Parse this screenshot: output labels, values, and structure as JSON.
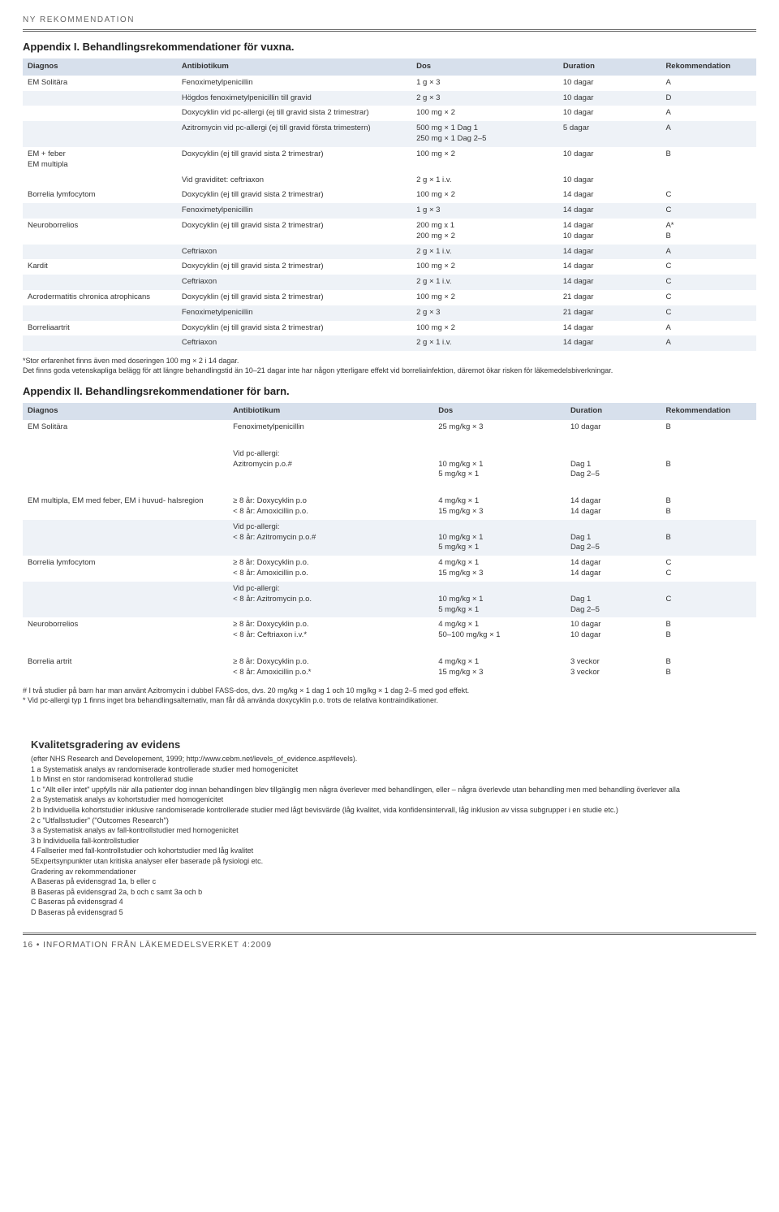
{
  "category": "NY REKOMMENDATION",
  "appendix1": {
    "title": "Appendix I. Behandlingsrekommendationer för vuxna.",
    "headers": [
      "Diagnos",
      "Antibiotikum",
      "Dos",
      "Duration",
      "Rekommendation"
    ],
    "rows": [
      {
        "alt": false,
        "cells": [
          "EM Solitära",
          "Fenoximetylpenicillin",
          "1 g × 3",
          "10 dagar",
          "A"
        ]
      },
      {
        "alt": true,
        "cells": [
          "",
          "Högdos fenoximetylpenicillin till gravid",
          "2 g × 3",
          "10 dagar",
          "D"
        ]
      },
      {
        "alt": false,
        "cells": [
          "",
          "Doxycyklin vid pc-allergi (ej till gravid sista 2 trimestrar)",
          "100 mg × 2",
          "10 dagar",
          "A"
        ]
      },
      {
        "alt": true,
        "cells": [
          "",
          "Azitromycin vid pc-allergi (ej till gravid första trimestern)",
          "500 mg × 1 Dag 1\n250 mg × 1 Dag 2–5",
          "5 dagar",
          "A"
        ]
      },
      {
        "alt": false,
        "cells": [
          "EM + feber\nEM multipla",
          "Doxycyklin (ej till gravid sista 2 trimestrar)",
          "100 mg × 2",
          "10 dagar",
          "B"
        ]
      },
      {
        "alt": false,
        "cells": [
          "",
          "Vid graviditet: ceftriaxon",
          "2 g × 1 i.v.",
          "10 dagar",
          ""
        ]
      },
      {
        "alt": false,
        "cells": [
          "Borrelia lymfocytom",
          "Doxycyklin (ej till gravid sista 2 trimestrar)",
          "100 mg × 2",
          "14 dagar",
          "C"
        ]
      },
      {
        "alt": true,
        "cells": [
          "",
          "Fenoximetylpenicillin",
          "1 g × 3",
          "14 dagar",
          "C"
        ]
      },
      {
        "alt": false,
        "cells": [
          "Neuroborrelios",
          "Doxycyklin (ej till gravid sista 2 trimestrar)",
          "200 mg x 1\n200 mg × 2",
          "14 dagar\n10 dagar",
          "A*\nB"
        ]
      },
      {
        "alt": true,
        "cells": [
          "",
          "Ceftriaxon",
          "2 g × 1 i.v.",
          "14 dagar",
          "A"
        ]
      },
      {
        "alt": false,
        "cells": [
          "Kardit",
          "Doxycyklin (ej till gravid sista 2 trimestrar)",
          "100 mg × 2",
          "14 dagar",
          "C"
        ]
      },
      {
        "alt": true,
        "cells": [
          "",
          "Ceftriaxon",
          "2 g × 1 i.v.",
          "14 dagar",
          "C"
        ]
      },
      {
        "alt": false,
        "cells": [
          "Acrodermatitis chronica atrophicans",
          "Doxycyklin (ej till gravid sista 2 trimestrar)",
          "100 mg × 2",
          "21 dagar",
          "C"
        ]
      },
      {
        "alt": true,
        "cells": [
          "",
          "Fenoximetylpenicillin",
          "2 g × 3",
          "21 dagar",
          "C"
        ]
      },
      {
        "alt": false,
        "cells": [
          "Borreliaartrit",
          "Doxycyklin (ej till gravid sista 2 trimestrar)",
          "100 mg × 2",
          "14 dagar",
          "A"
        ]
      },
      {
        "alt": true,
        "cells": [
          "",
          "Ceftriaxon",
          "2 g × 1 i.v.",
          "14 dagar",
          "A"
        ]
      }
    ],
    "footnote": "*Stor erfarenhet finns även med doseringen 100 mg × 2 i 14 dagar.\nDet finns goda vetenskapliga belägg för att längre behandlingstid än 10–21 dagar inte har någon ytterligare effekt vid borreliainfektion, däremot ökar risken för läkemedelsbiverkningar."
  },
  "appendix2": {
    "title": "Appendix II. Behandlingsrekommendationer för barn.",
    "headers": [
      "Diagnos",
      "Antibiotikum",
      "Dos",
      "Duration",
      "Rekommendation"
    ],
    "rows": [
      {
        "alt": false,
        "cells": [
          "EM Solitära",
          "Fenoximetylpenicillin",
          "25 mg/kg × 3",
          "10 dagar",
          "B"
        ]
      },
      {
        "alt": false,
        "cells": [
          "",
          "Vid pc-allergi:\nAzitromycin p.o.#",
          "\n10 mg/kg × 1\n5 mg/kg × 1",
          "\nDag 1\nDag 2–5",
          "\nB"
        ]
      },
      {
        "alt": false,
        "cells": [
          "EM multipla, EM med feber, EM i huvud- halsregion",
          "≥ 8 år: Doxycyklin p.o\n< 8 år: Amoxicillin p.o.",
          "4 mg/kg × 1\n15 mg/kg × 3",
          "14 dagar\n14 dagar",
          "B\nB"
        ]
      },
      {
        "alt": true,
        "cells": [
          "",
          "Vid pc-allergi:\n< 8 år: Azitromycin p.o.#",
          "\n10 mg/kg × 1\n5 mg/kg × 1",
          "\nDag 1\nDag 2–5",
          "\nB"
        ]
      },
      {
        "alt": false,
        "cells": [
          "Borrelia lymfocytom",
          "≥ 8 år: Doxycyklin p.o.\n< 8 år: Amoxicillin p.o.",
          "4 mg/kg × 1\n15 mg/kg × 3",
          "14 dagar\n14 dagar",
          "C\nC"
        ]
      },
      {
        "alt": true,
        "cells": [
          "",
          "Vid pc-allergi:\n< 8 år: Azitromycin p.o.",
          "\n10 mg/kg × 1\n5 mg/kg × 1",
          "\nDag 1\nDag 2–5",
          "\nC"
        ]
      },
      {
        "alt": false,
        "cells": [
          "Neuroborrelios",
          "≥ 8 år: Doxycyklin p.o.\n< 8 år: Ceftriaxon i.v.*",
          "4 mg/kg × 1\n50–100 mg/kg × 1",
          "10 dagar\n10 dagar",
          "B\nB"
        ]
      },
      {
        "alt": false,
        "cells": [
          "Borrelia artrit",
          "≥ 8 år: Doxycyklin p.o.\n< 8 år: Amoxicillin p.o.*",
          "4 mg/kg × 1\n15 mg/kg × 3",
          "3 veckor\n3 veckor",
          "B\nB"
        ]
      }
    ],
    "footnote": "# I två studier på barn har man använt Azitromycin i dubbel FASS-dos, dvs. 20 mg/kg × 1 dag 1 och 10 mg/kg × 1 dag 2–5 med god effekt.\n* Vid pc-allergi typ 1 finns inget bra behandlingsalternativ, man får då använda doxycyklin p.o. trots de relativa kontraindikationer."
  },
  "evidence": {
    "title": "Kvalitetsgradering av evidens",
    "subtitle": "(efter NHS Research and Developement, 1999; http://www.cebm.net/levels_of_evidence.asp#levels).",
    "lines": [
      "1 a Systematisk analys av randomiserade kontrollerade studier med homogenicitet",
      "1 b Minst en stor randomiserad kontrollerad studie",
      "1 c \"Allt eller intet\" uppfylls när alla patienter dog innan behandlingen blev tillgänglig men några överlever med behandlingen, eller – några överlevde utan behandling men med behandling överlever alla",
      "2 a Systematisk analys av kohortstudier med homogenicitet",
      "2 b Individuella kohortstudier inklusive randomiserade kontrollerade studier med lågt bevisvärde (låg kvalitet, vida konfidensintervall, låg inklusion av vissa subgrupper i en studie etc.)",
      "2 c \"Utfallsstudier\" (\"Outcomes Research\")",
      "3 a Systematisk analys av fall-kontrollstudier med homogenicitet",
      "3 b Individuella fall-kontrollstudier",
      "4 Fallserier med fall-kontrollstudier och kohortstudier med låg kvalitet",
      "5Expertsynpunkter utan kritiska analyser eller baserade på fysiologi etc.",
      "Gradering av rekommendationer",
      "A Baseras på evidensgrad 1a, b eller c",
      "B Baseras på evidensgrad 2a, b och c samt 3a och b",
      "C    Baseras på evidensgrad 4",
      "D    Baseras på evidensgrad 5"
    ]
  },
  "footer": "16   •   INFORMATION FRÅN LÄKEMEDELSVERKET 4:2009",
  "gap_rows_after": {
    "a1_none": [],
    "a2_after_idx": [
      0,
      1,
      6
    ]
  }
}
